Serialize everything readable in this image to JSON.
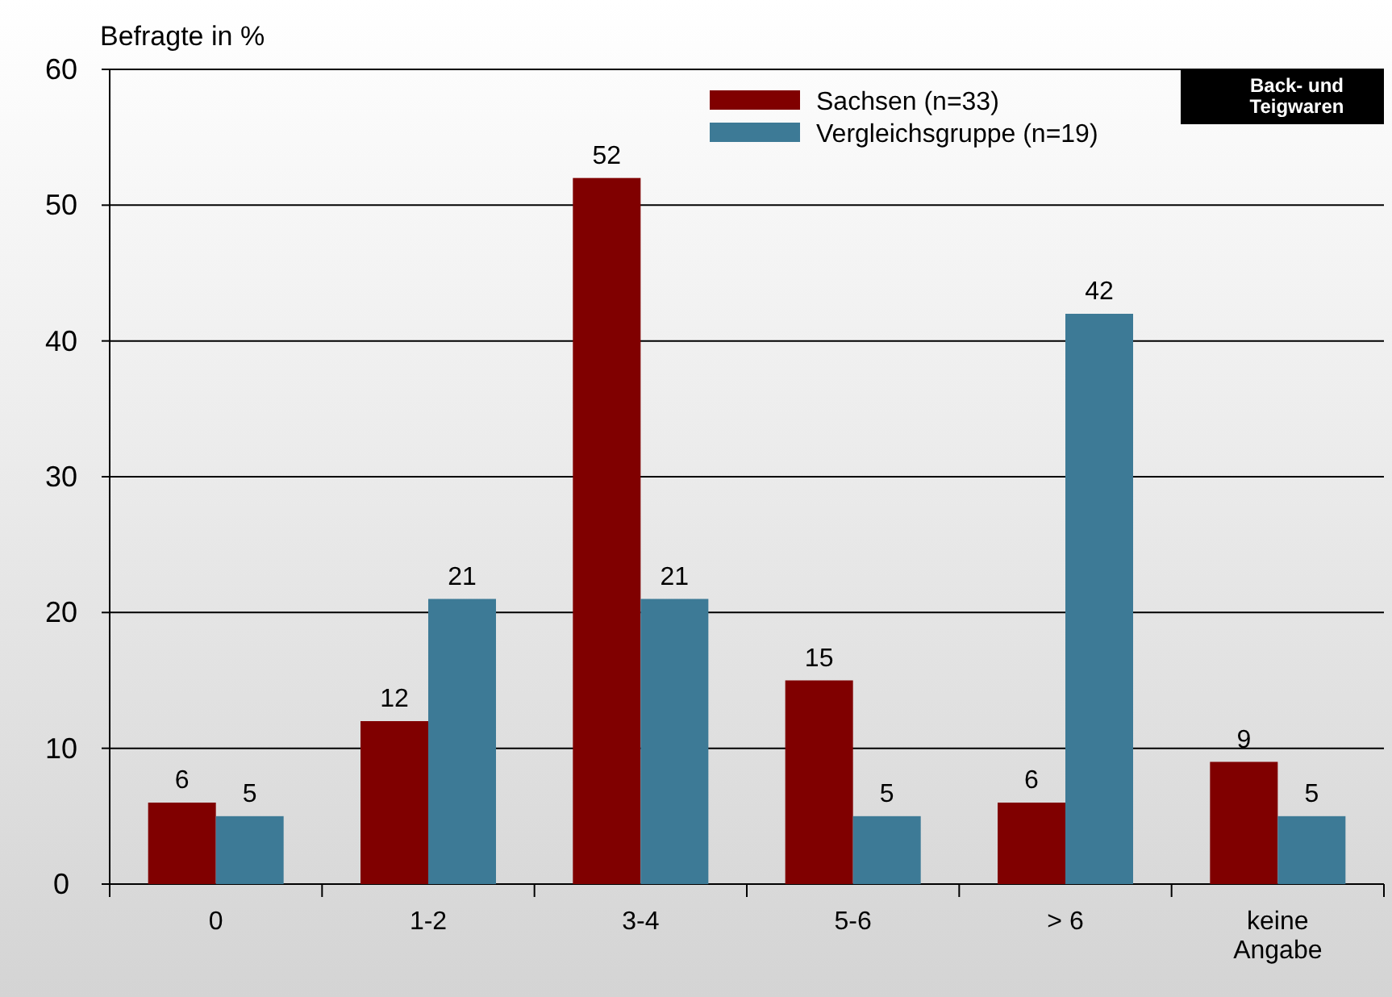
{
  "chart_data": {
    "type": "bar",
    "ylabel": "Befragte in %",
    "categories": [
      "0",
      "1-2",
      "3-4",
      "5-6",
      "> 6",
      "keine Angabe"
    ],
    "series": [
      {
        "name": "Sachsen (n=33)",
        "color": "#800000",
        "values": [
          6,
          12,
          52,
          15,
          6,
          9
        ]
      },
      {
        "name": "Vergleichsgruppe (n=19)",
        "color": "#3d7a96",
        "values": [
          5,
          21,
          21,
          5,
          42,
          5
        ]
      }
    ],
    "ylim": [
      0,
      60
    ],
    "yticks": [
      0,
      10,
      20,
      30,
      40,
      50,
      60
    ],
    "grid": "y",
    "legend": "top",
    "data_labels": true,
    "annotations": [
      "Back- und\nTeigwaren"
    ]
  }
}
